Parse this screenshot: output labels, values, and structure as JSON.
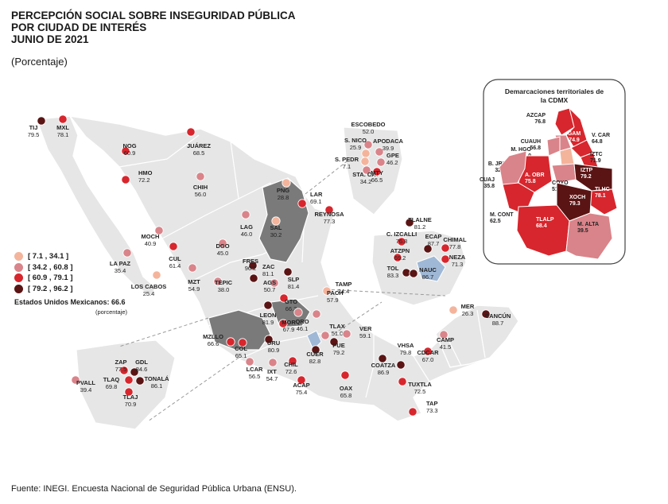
{
  "title": {
    "line1": "PERCEPCIÓN SOCIAL SOBRE INSEGURIDAD PÚBLICA",
    "line2": "POR CIUDAD DE INTERÉS",
    "line3": "JUNIO DE 2021",
    "subtitle": "(Porcentaje)"
  },
  "legend": {
    "classes": [
      {
        "label": "[  7.1 , 34.1 ]",
        "color": "#f4b49c"
      },
      {
        "label": "[ 34.2 , 60.8 ]",
        "color": "#d9848a"
      },
      {
        "label": "[ 60.9 , 79.1 ]",
        "color": "#d7262d"
      },
      {
        "label": "[ 79.2 , 96.2 ]",
        "color": "#5a1414"
      }
    ]
  },
  "national": {
    "label": "Estados Unidos Mexicanos:",
    "value": "66.6",
    "note": "(porcentaje)"
  },
  "source": "Fuente: INEGI. Encuesta Nacional de Seguridad Pública Urbana (ENSU).",
  "colors": {
    "land": "#e6e6e6",
    "border": "#ffffff",
    "highlight": "#7a7a7a",
    "cdmx_blue": "#9fb8d6"
  },
  "cities": [
    {
      "name": "TIJ",
      "value": "79.5",
      "cls": 3
    },
    {
      "name": "MXL",
      "value": "78.1",
      "cls": 2
    },
    {
      "name": "NOG",
      "value": "60.9",
      "cls": 2
    },
    {
      "name": "JUÁREZ",
      "value": "68.5",
      "cls": 2
    },
    {
      "name": "HMO",
      "value": "72.2",
      "cls": 2
    },
    {
      "name": "CHIH",
      "value": "56.0",
      "cls": 1
    },
    {
      "name": "MOCH",
      "value": "40.9",
      "cls": 1
    },
    {
      "name": "LA PAZ",
      "value": "35.4",
      "cls": 1
    },
    {
      "name": "LOS CABOS",
      "value": "25.4",
      "cls": 0
    },
    {
      "name": "CUL",
      "value": "61.4",
      "cls": 2
    },
    {
      "name": "MZT",
      "value": "54.9",
      "cls": 1
    },
    {
      "name": "DGO",
      "value": "45.0",
      "cls": 1
    },
    {
      "name": "LAG",
      "value": "46.0",
      "cls": 1
    },
    {
      "name": "SAL",
      "value": "30.2",
      "cls": 0
    },
    {
      "name": "PNG",
      "value": "28.8",
      "cls": 0
    },
    {
      "name": "LAR",
      "value": "69.1",
      "cls": 2
    },
    {
      "name": "REYNOSA",
      "value": "77.3",
      "cls": 2
    },
    {
      "name": "FRES",
      "value": "96.2",
      "cls": 3
    },
    {
      "name": "ZAC",
      "value": "81.1",
      "cls": 3
    },
    {
      "name": "TEPIC",
      "value": "38.0",
      "cls": 1
    },
    {
      "name": "AGS",
      "value": "50.7",
      "cls": 1
    },
    {
      "name": "SLP",
      "value": "81.4",
      "cls": 3
    },
    {
      "name": "TAMP",
      "value": "24.4",
      "cls": 0
    },
    {
      "name": "GTO",
      "value": "66.3",
      "cls": 2
    },
    {
      "name": "LEON",
      "value": "81.9",
      "cls": 3
    },
    {
      "name": "QRO",
      "value": "46.1",
      "cls": 1
    },
    {
      "name": "MOR",
      "value": "67.9",
      "cls": 2
    },
    {
      "name": "PACH",
      "value": "57.9",
      "cls": 1
    },
    {
      "name": "TLAX",
      "value": "51.0",
      "cls": 1
    },
    {
      "name": "VER",
      "value": "59.1",
      "cls": 1
    },
    {
      "name": "URU",
      "value": "80.9",
      "cls": 3
    },
    {
      "name": "MZLLO",
      "value": "66.6",
      "cls": 2
    },
    {
      "name": "COL",
      "value": "65.1",
      "cls": 2
    },
    {
      "name": "LCAR",
      "value": "56.5",
      "cls": 1
    },
    {
      "name": "IXT",
      "value": "54.7",
      "cls": 1
    },
    {
      "name": "CHIL",
      "value": "72.6",
      "cls": 2
    },
    {
      "name": "CUER",
      "value": "82.8",
      "cls": 3
    },
    {
      "name": "PUE",
      "value": "79.2",
      "cls": 3
    },
    {
      "name": "ACAP",
      "value": "75.4",
      "cls": 2
    },
    {
      "name": "OAX",
      "value": "65.8",
      "cls": 2
    },
    {
      "name": "COATZA",
      "value": "86.9",
      "cls": 3
    },
    {
      "name": "VHSA",
      "value": "79.8",
      "cls": 3
    },
    {
      "name": "CDCAR",
      "value": "67.0",
      "cls": 2
    },
    {
      "name": "TUXTLA",
      "value": "72.5",
      "cls": 2
    },
    {
      "name": "TAP",
      "value": "73.3",
      "cls": 2
    },
    {
      "name": "CAMP",
      "value": "41.5",
      "cls": 1
    },
    {
      "name": "MER",
      "value": "26.3",
      "cls": 0
    },
    {
      "name": "CANCÚN",
      "value": "88.7",
      "cls": 3
    },
    {
      "name": "ZAP",
      "value": "77.5",
      "cls": 2
    },
    {
      "name": "GDL",
      "value": "84.6",
      "cls": 3
    },
    {
      "name": "TLAQ",
      "value": "69.8",
      "cls": 2
    },
    {
      "name": "TONALÁ",
      "value": "86.1",
      "cls": 3
    },
    {
      "name": "TLAJ",
      "value": "70.9",
      "cls": 2
    },
    {
      "name": "PVALL",
      "value": "39.4",
      "cls": 1
    },
    {
      "name": "ESCOBEDO",
      "value": "52.0",
      "cls": 1
    },
    {
      "name": "S. NICO",
      "value": "25.9",
      "cls": 0
    },
    {
      "name": "APODACA",
      "value": "39.9",
      "cls": 1
    },
    {
      "name": "S. PEDR",
      "value": "7.1",
      "cls": 0
    },
    {
      "name": "GPE",
      "value": "46.2",
      "cls": 1
    },
    {
      "name": "STA. CAT",
      "value": "34.2",
      "cls": 1
    },
    {
      "name": "MTY",
      "value": "66.5",
      "cls": 2
    },
    {
      "name": "TLALNE",
      "value": "81.2",
      "cls": 3
    },
    {
      "name": "C. IZCALLI",
      "value": "76.8",
      "cls": 2
    },
    {
      "name": "ECAP",
      "value": "87.7",
      "cls": 3
    },
    {
      "name": "CHIMAL",
      "value": "77.8",
      "cls": 2
    },
    {
      "name": "ATZPN",
      "value": "69.2",
      "cls": 2
    },
    {
      "name": "NEZA",
      "value": "71.3",
      "cls": 2
    },
    {
      "name": "TOL",
      "value": "83.3",
      "cls": 3
    },
    {
      "name": "NAUC",
      "value": "86.7",
      "cls": 3
    }
  ],
  "cdmx": {
    "title_line1": "Demarcaciones territoriales de",
    "title_line2": "la CDMX",
    "districts": [
      {
        "name": "AZCAP",
        "value": "76.8",
        "cls": 2
      },
      {
        "name": "GAM",
        "value": "74.9",
        "cls": 2
      },
      {
        "name": "CUAUH",
        "value": "56.8",
        "cls": 1
      },
      {
        "name": "V. CAR",
        "value": "64.8",
        "cls": 2
      },
      {
        "name": "M. HGO",
        "value": "59.0",
        "cls": 1
      },
      {
        "name": "IZTC",
        "value": "71.9",
        "cls": 2
      },
      {
        "name": "B. JRZ",
        "value": "32.2",
        "cls": 0
      },
      {
        "name": "A. OBR",
        "value": "75.8",
        "cls": 2
      },
      {
        "name": "COYO",
        "value": "51.1",
        "cls": 1
      },
      {
        "name": "IZTP",
        "value": "79.2",
        "cls": 3
      },
      {
        "name": "CUAJ",
        "value": "35.8",
        "cls": 1
      },
      {
        "name": "TLHC",
        "value": "78.1",
        "cls": 2
      },
      {
        "name": "XOCH",
        "value": "79.3",
        "cls": 3
      },
      {
        "name": "M. CONT",
        "value": "62.5",
        "cls": 2
      },
      {
        "name": "TLALP",
        "value": "68.4",
        "cls": 2
      },
      {
        "name": "M. ALTA",
        "value": "39.5",
        "cls": 1
      }
    ]
  }
}
